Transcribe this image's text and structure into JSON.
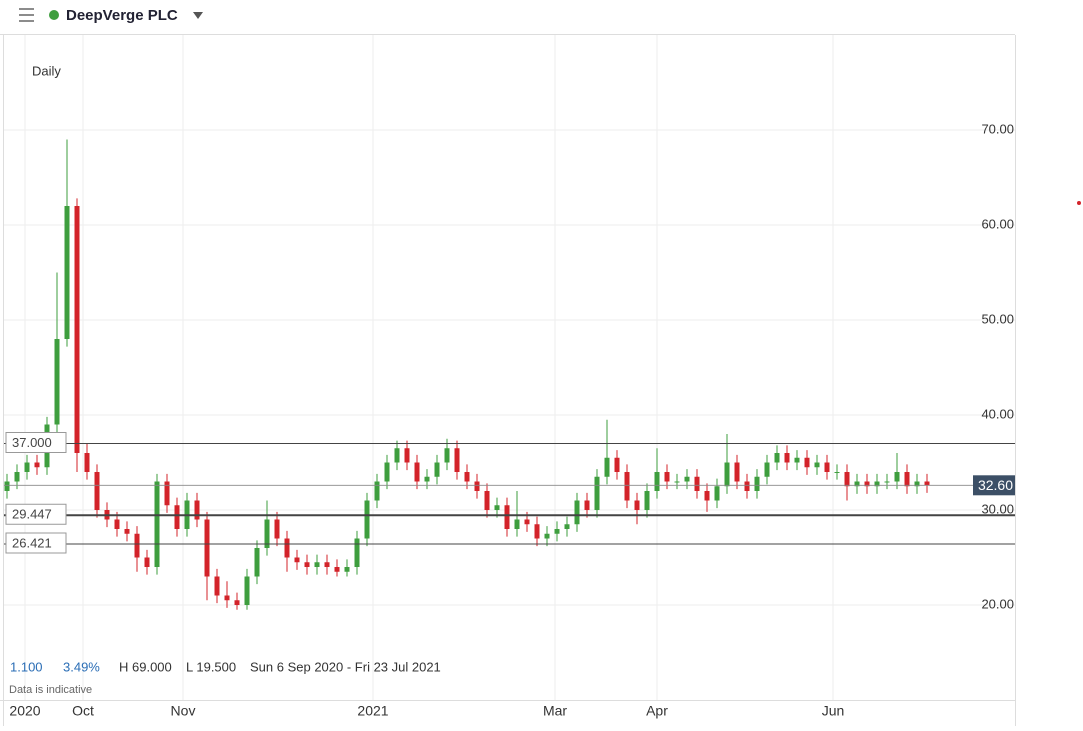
{
  "header": {
    "title": "DeepVerge PLC"
  },
  "chart_data": {
    "type": "candlestick",
    "interval": "Daily",
    "open": [
      32,
      33,
      34,
      35,
      34.5,
      39,
      48,
      62,
      36,
      34,
      30,
      29,
      28,
      27.5,
      25,
      24,
      33,
      30.5,
      28,
      31,
      29,
      23,
      21,
      20.5,
      20,
      23,
      26,
      29,
      27,
      25,
      24.5,
      24,
      24.5,
      24,
      23.5,
      24,
      27,
      31,
      33,
      35,
      36.5,
      35,
      33,
      33.5,
      35,
      36.5,
      34,
      33,
      32,
      30,
      30.5,
      28,
      29,
      28.5,
      27,
      27.5,
      28,
      28.5,
      31,
      30,
      33.5,
      35.5,
      34,
      31,
      30,
      32,
      34,
      33,
      33,
      33.5,
      32,
      31,
      32.5,
      35,
      33,
      32,
      33.5,
      35,
      36,
      35,
      35.5,
      34.5,
      35,
      34,
      34,
      32.5,
      33,
      32.5,
      33,
      33,
      34,
      32.5,
      33
    ],
    "high": [
      33.8,
      34.8,
      35.8,
      35.8,
      39.8,
      55,
      69,
      62.8,
      37,
      34.8,
      30.8,
      29.8,
      28.8,
      28.3,
      25.8,
      33.8,
      33.8,
      31.3,
      31.8,
      31.8,
      29.8,
      23.8,
      22.5,
      21.3,
      23.8,
      26.8,
      31,
      29.8,
      27.8,
      25.8,
      25.3,
      25.3,
      25.3,
      24.8,
      24.8,
      27.8,
      31.8,
      33.8,
      35.8,
      37.3,
      37.3,
      35.8,
      34.3,
      35.8,
      37.5,
      37.3,
      34.8,
      33.8,
      32.8,
      31.3,
      31.3,
      32,
      29.8,
      29.3,
      28.3,
      28.8,
      29.3,
      31.8,
      31.8,
      34.3,
      39.5,
      36.3,
      34.8,
      31.8,
      32.8,
      36.5,
      34.8,
      33.8,
      34.3,
      34.3,
      32.8,
      33.3,
      38,
      35.8,
      33.8,
      34.3,
      35.8,
      36.8,
      36.8,
      36.3,
      36.3,
      35.8,
      35.8,
      34.8,
      34.8,
      33.8,
      33.8,
      33.8,
      33.8,
      36,
      34.8,
      33.8,
      33.8
    ],
    "low": [
      31.2,
      32.2,
      33.2,
      33.7,
      33.7,
      38.2,
      47.2,
      34,
      33.2,
      29.2,
      28.2,
      27.2,
      26.7,
      23.5,
      23.2,
      23.2,
      29.7,
      27.2,
      27.2,
      28.2,
      20.5,
      20.2,
      19.7,
      19.5,
      19.5,
      22.2,
      25.2,
      26.2,
      23.5,
      23.7,
      23.2,
      23.2,
      23.2,
      23,
      23,
      23.2,
      26.2,
      30.2,
      32.2,
      34.2,
      34.2,
      32.2,
      32.2,
      32.7,
      34.2,
      33.2,
      32.2,
      31.2,
      29.2,
      29.2,
      27.2,
      27.2,
      27.7,
      26.2,
      26.2,
      26.7,
      27.2,
      27.7,
      29.2,
      29.2,
      32.7,
      33.2,
      30.2,
      28.5,
      29.2,
      31.2,
      32.2,
      32.2,
      32.2,
      31.2,
      29.8,
      30.2,
      31.7,
      32.2,
      31.2,
      31.2,
      32.7,
      34.2,
      34.2,
      34.2,
      33.7,
      33.7,
      33.2,
      33.2,
      31,
      31.7,
      31.7,
      31.7,
      32.2,
      32.2,
      31.7,
      31.7,
      31.8
    ],
    "close": [
      33,
      34,
      35,
      34.5,
      39,
      48,
      62,
      36,
      34,
      30,
      29,
      28,
      27.5,
      25,
      24,
      33,
      30.5,
      28,
      31,
      29,
      23,
      21,
      20.5,
      20,
      23,
      26,
      29,
      27,
      25,
      24.5,
      24,
      24.5,
      24,
      23.5,
      24,
      27,
      31,
      33,
      35,
      36.5,
      35,
      33,
      33.5,
      35,
      36.5,
      34,
      33,
      32,
      30,
      30.5,
      28,
      29,
      28.5,
      27,
      27.5,
      28,
      28.5,
      31,
      30,
      33.5,
      35.5,
      34,
      31,
      30,
      32,
      34,
      33,
      33,
      33.5,
      32,
      31,
      32.5,
      35,
      33,
      32,
      33.5,
      35,
      36,
      35,
      35.5,
      34.5,
      35,
      34,
      34,
      32.5,
      33,
      32.5,
      33,
      33,
      34,
      32.5,
      33,
      32.6
    ],
    "up_color": "#3e9e3e",
    "down_color": "#d3232a",
    "xlim": [
      -0.7,
      100.8
    ],
    "xticks": [
      {
        "value": 1.8,
        "label": "2020"
      },
      {
        "value": 7.6,
        "label": "Oct"
      },
      {
        "value": 17.6,
        "label": "Nov"
      },
      {
        "value": 36.6,
        "label": "2021"
      },
      {
        "value": 54.8,
        "label": "Mar"
      },
      {
        "value": 65,
        "label": "Apr"
      },
      {
        "value": 82.6,
        "label": "Jun"
      }
    ],
    "ylim": [
      10,
      80
    ],
    "yticks": [
      {
        "value": 20,
        "label": "20.00"
      },
      {
        "value": 30,
        "label": "30.00"
      },
      {
        "value": 40,
        "label": "40.00"
      },
      {
        "value": 50,
        "label": "50.00"
      },
      {
        "value": 60,
        "label": "60.00"
      },
      {
        "value": 70,
        "label": "70.00"
      }
    ],
    "grid": true,
    "levels": [
      {
        "value": 37,
        "label": "37.000"
      },
      {
        "value": 29.447,
        "label": "29.447"
      },
      {
        "value": 26.421,
        "label": "26.421"
      }
    ],
    "last_price": {
      "value": 32.6,
      "label": "32.60"
    },
    "stats": {
      "change": "1.100",
      "change_pct": "3.49%",
      "high": "H 69.000",
      "low": "L 19.500",
      "range": "Sun 6 Sep 2020 - Fri 23 Jul 2021"
    },
    "note": "Data is indicative"
  }
}
